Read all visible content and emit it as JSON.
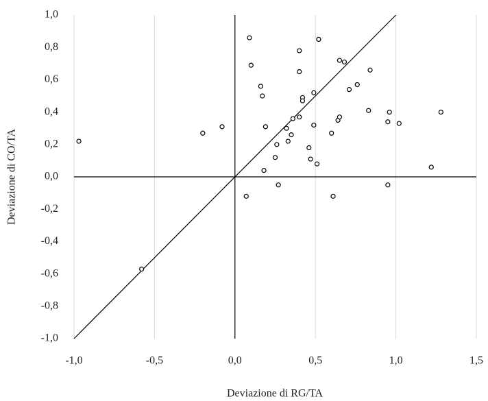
{
  "chart_data": {
    "type": "scatter",
    "x_label": "Deviazione  di RG/TA",
    "y_label": "Deviazione  di CO/TA",
    "color": "#000000",
    "grid": true,
    "xlim": [
      -1.0,
      1.5
    ],
    "ylim": [
      -1.0,
      1.0
    ],
    "xticks": [
      {
        "value": -1.0,
        "label": "-1,0"
      },
      {
        "value": -0.5,
        "label": "-0,5"
      },
      {
        "value": 0.0,
        "label": "0,0"
      },
      {
        "value": 0.5,
        "label": "0,5"
      },
      {
        "value": 1.0,
        "label": "1,0"
      },
      {
        "value": 1.5,
        "label": "1,5"
      }
    ],
    "yticks": [
      {
        "value": -1.0,
        "label": "-1,0"
      },
      {
        "value": -0.8,
        "label": "-0,8"
      },
      {
        "value": -0.6,
        "label": "-0,6"
      },
      {
        "value": -0.4,
        "label": "-0,4"
      },
      {
        "value": -0.2,
        "label": "-0,2"
      },
      {
        "value": 0.0,
        "label": "0,0"
      },
      {
        "value": 0.2,
        "label": "0,2"
      },
      {
        "value": 0.4,
        "label": "0,4"
      },
      {
        "value": 0.6,
        "label": "0,6"
      },
      {
        "value": 0.8,
        "label": "0,8"
      },
      {
        "value": 1.0,
        "label": "1,0"
      }
    ],
    "x": [
      -0.97,
      -0.58,
      -0.2,
      -0.08,
      0.07,
      0.09,
      0.1,
      0.16,
      0.17,
      0.18,
      0.19,
      0.25,
      0.26,
      0.27,
      0.32,
      0.33,
      0.35,
      0.36,
      0.4,
      0.4,
      0.4,
      0.42,
      0.42,
      0.46,
      0.47,
      0.49,
      0.49,
      0.51,
      0.52,
      0.6,
      0.61,
      0.64,
      0.65,
      0.65,
      0.68,
      0.71,
      0.76,
      0.83,
      0.84,
      0.95,
      0.95,
      0.96,
      1.02,
      1.22,
      1.28
    ],
    "values": [
      0.22,
      -0.57,
      0.27,
      0.31,
      -0.12,
      0.86,
      0.69,
      0.56,
      0.5,
      0.04,
      0.31,
      0.12,
      0.2,
      -0.05,
      0.3,
      0.22,
      0.26,
      0.36,
      0.78,
      0.65,
      0.37,
      0.49,
      0.47,
      0.18,
      0.11,
      0.52,
      0.32,
      0.08,
      0.85,
      0.27,
      -0.12,
      0.35,
      0.37,
      0.72,
      0.71,
      0.54,
      0.57,
      0.41,
      0.66,
      0.34,
      -0.05,
      0.4,
      0.33,
      0.06,
      0.4
    ]
  }
}
